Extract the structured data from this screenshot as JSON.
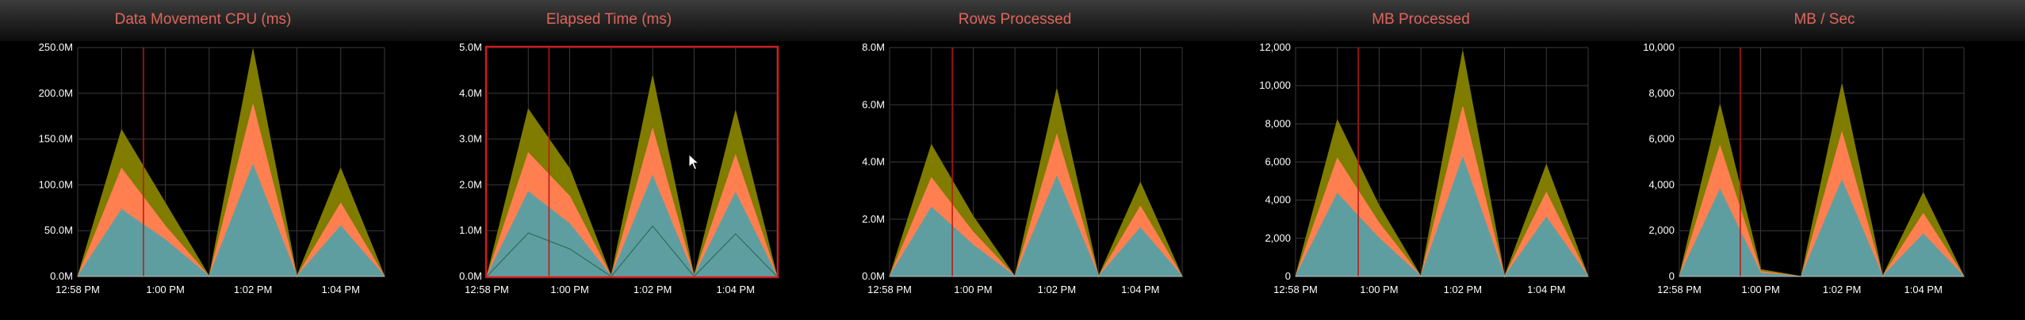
{
  "colors": {
    "title": "#e0655c",
    "grid": "#3a3a3a",
    "marker": "#c01414",
    "highlight_border": "#c81e1e",
    "series": [
      "#7f7c00",
      "#ff7f50",
      "#5f9ea0",
      "#2e6a5a"
    ]
  },
  "icons": {
    "cursor": "arrow-cursor-icon"
  },
  "chart_data": [
    {
      "type": "area",
      "title": "Data Movement CPU (ms)",
      "x_ticks": [
        "12:58 PM",
        "1:00 PM",
        "1:02 PM",
        "1:04 PM"
      ],
      "x": [
        "12:58 PM",
        "12:59 PM",
        "1:00 PM",
        "1:01 PM",
        "1:02 PM",
        "1:03 PM",
        "1:04 PM",
        "1:05 PM"
      ],
      "y_ticks": [
        "0.0M",
        "50.0M",
        "100.0M",
        "150.0M",
        "200.0M",
        "250.0M"
      ],
      "ylim": [
        0,
        250000000
      ],
      "marker_x": "12:59:30 PM",
      "series": [
        {
          "values": [
            0,
            160000000,
            80000000,
            0,
            248000000,
            0,
            118000000,
            0
          ]
        },
        {
          "values": [
            0,
            118000000,
            55000000,
            0,
            188000000,
            0,
            80000000,
            0
          ]
        },
        {
          "values": [
            0,
            73000000,
            40000000,
            0,
            122000000,
            0,
            55000000,
            0
          ]
        }
      ]
    },
    {
      "type": "area",
      "title": "Elapsed Time (ms)",
      "highlighted": true,
      "x_ticks": [
        "12:58 PM",
        "1:00 PM",
        "1:02 PM",
        "1:04 PM"
      ],
      "x": [
        "12:58 PM",
        "12:59 PM",
        "1:00 PM",
        "1:01 PM",
        "1:02 PM",
        "1:03 PM",
        "1:04 PM",
        "1:05 PM"
      ],
      "y_ticks": [
        "0.0M",
        "1.0M",
        "2.0M",
        "3.0M",
        "4.0M",
        "5.0M"
      ],
      "ylim": [
        0,
        5000000
      ],
      "marker_x": "12:59:30 PM",
      "series": [
        {
          "values": [
            0,
            3650000,
            2350000,
            0,
            4380000,
            0,
            3620000,
            0
          ]
        },
        {
          "values": [
            0,
            2700000,
            1750000,
            0,
            3230000,
            0,
            2650000,
            0
          ]
        },
        {
          "values": [
            0,
            1850000,
            1150000,
            0,
            2200000,
            0,
            1830000,
            0
          ]
        },
        {
          "values": [
            0,
            950000,
            600000,
            0,
            1100000,
            0,
            930000,
            0
          ]
        }
      ]
    },
    {
      "type": "area",
      "title": "Rows Processed",
      "x_ticks": [
        "12:58 PM",
        "1:00 PM",
        "1:02 PM",
        "1:04 PM"
      ],
      "x": [
        "12:58 PM",
        "12:59 PM",
        "1:00 PM",
        "1:01 PM",
        "1:02 PM",
        "1:03 PM",
        "1:04 PM",
        "1:05 PM"
      ],
      "y_ticks": [
        "0.0M",
        "2.0M",
        "4.0M",
        "6.0M",
        "8.0M"
      ],
      "ylim": [
        0,
        8000000
      ],
      "marker_x": "12:59:30 PM",
      "series": [
        {
          "values": [
            0,
            4600000,
            2100000,
            0,
            6550000,
            0,
            3280000,
            0
          ]
        },
        {
          "values": [
            0,
            3450000,
            1550000,
            0,
            4950000,
            0,
            2450000,
            0
          ]
        },
        {
          "values": [
            0,
            2420000,
            1100000,
            0,
            3500000,
            0,
            1700000,
            0
          ]
        }
      ]
    },
    {
      "type": "area",
      "title": "MB Processed",
      "x_ticks": [
        "12:58 PM",
        "1:00 PM",
        "1:02 PM",
        "1:04 PM"
      ],
      "x": [
        "12:58 PM",
        "12:59 PM",
        "1:00 PM",
        "1:01 PM",
        "1:02 PM",
        "1:03 PM",
        "1:04 PM",
        "1:05 PM"
      ],
      "y_ticks": [
        "0",
        "2,000",
        "4,000",
        "6,000",
        "8,000",
        "10,000",
        "12,000"
      ],
      "ylim": [
        0,
        12000
      ],
      "marker_x": "12:59:30 PM",
      "series": [
        {
          "values": [
            0,
            8200,
            3700,
            0,
            11800,
            0,
            5850,
            0
          ]
        },
        {
          "values": [
            0,
            6200,
            2800,
            0,
            8900,
            0,
            4400,
            0
          ]
        },
        {
          "values": [
            0,
            4350,
            2000,
            0,
            6250,
            0,
            3100,
            0
          ]
        }
      ]
    },
    {
      "type": "area",
      "title": "MB / Sec",
      "x_ticks": [
        "12:58 PM",
        "1:00 PM",
        "1:02 PM",
        "1:04 PM"
      ],
      "x": [
        "12:58 PM",
        "12:59 PM",
        "1:00 PM",
        "1:01 PM",
        "1:02 PM",
        "1:03 PM",
        "1:04 PM",
        "1:05 PM"
      ],
      "y_ticks": [
        "0",
        "2,000",
        "4,000",
        "6,000",
        "8,000",
        "10,000"
      ],
      "ylim": [
        0,
        10000
      ],
      "marker_x": "12:59:30 PM",
      "series": [
        {
          "values": [
            0,
            7500,
            300,
            0,
            8400,
            0,
            3650,
            0
          ]
        },
        {
          "values": [
            0,
            5700,
            220,
            0,
            6300,
            0,
            2750,
            0
          ]
        },
        {
          "values": [
            0,
            3800,
            150,
            0,
            4200,
            0,
            1850,
            0
          ]
        }
      ]
    }
  ]
}
